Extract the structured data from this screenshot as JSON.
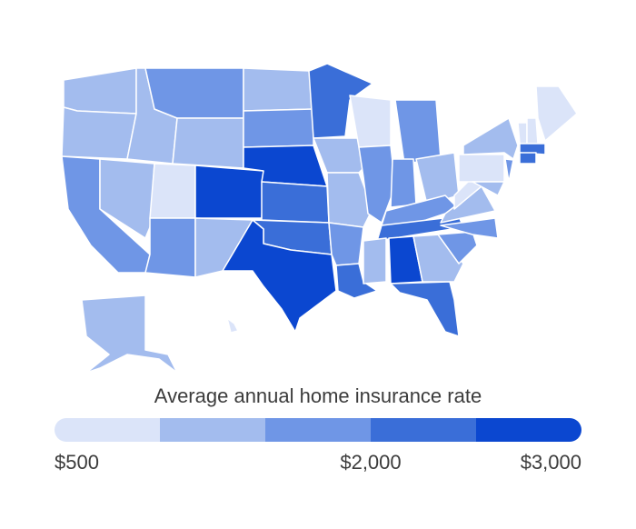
{
  "chart_data": {
    "type": "choropleth",
    "legend_title": "Average annual home insurance rate",
    "colors": [
      "#dbe4f9",
      "#a3bcee",
      "#6f96e6",
      "#3a6ed8",
      "#0b47d0"
    ],
    "scale_lim": [
      500,
      3000
    ],
    "scale_ticks": [
      {
        "value": 500,
        "label": "$500"
      },
      {
        "value": 2000,
        "label": "$2,000"
      },
      {
        "value": 3000,
        "label": "$3,000"
      }
    ],
    "values": [
      1300,
      1300,
      1800,
      1300,
      1300,
      1800,
      1300,
      800,
      1800,
      2800,
      1300,
      1300,
      1800,
      2800,
      2300,
      2300,
      2800,
      2300,
      1300,
      1300,
      1800,
      2300,
      800,
      1800,
      1800,
      1800,
      1300,
      1800,
      2300,
      1300,
      2800,
      1300,
      2300,
      1800,
      1800,
      1300,
      800,
      800,
      1300,
      1800,
      1300,
      800,
      800,
      800,
      2300,
      2300,
      1300,
      800
    ]
  }
}
